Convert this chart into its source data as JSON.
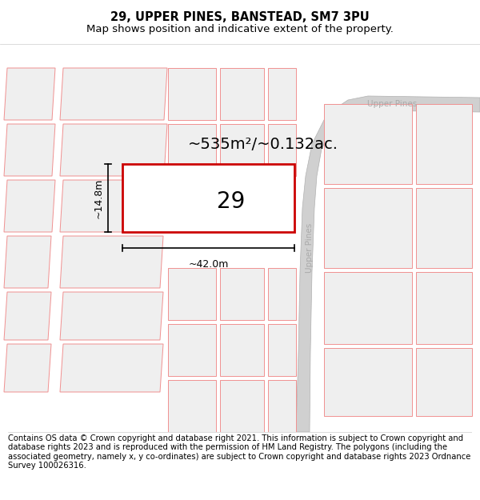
{
  "title_line1": "29, UPPER PINES, BANSTEAD, SM7 3PU",
  "title_line2": "Map shows position and indicative extent of the property.",
  "copyright_text": "Contains OS data © Crown copyright and database right 2021. This information is subject to Crown copyright and database rights 2023 and is reproduced with the permission of HM Land Registry. The polygons (including the associated geometry, namely x, y co-ordinates) are subject to Crown copyright and database rights 2023 Ordnance Survey 100026316.",
  "area_text": "~535m²/~0.132ac.",
  "dim_width": "~42.0m",
  "dim_height": "~14.8m",
  "property_number": "29",
  "bg_color": "#ffffff",
  "map_bg": "#f8f8f8",
  "road_color": "#d0d0d0",
  "road_edge_color": "#b0b0b0",
  "plot_fill": "#efefef",
  "plot_line_color": "#f09090",
  "highlight_color": "#cc0000",
  "road_label": "Upper Pines",
  "title_fontsize": 10.5,
  "subtitle_fontsize": 9.5,
  "copyright_fontsize": 7.2,
  "area_fontsize": 14,
  "dim_fontsize": 9,
  "prop_num_fontsize": 20
}
